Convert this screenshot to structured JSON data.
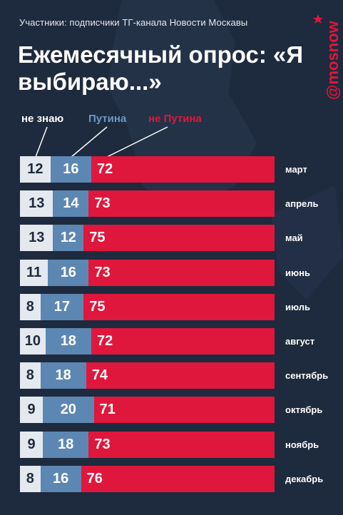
{
  "header": {
    "subtitle": "Участники: подписчики ТГ-канала Новости Москавы",
    "title": "Ежемесячный опрос: «Я выбираю...»",
    "brand": "@mosnow"
  },
  "colors": {
    "background": "#1e2a3d",
    "dont_know": "#e4e9ef",
    "putin": "#5d87b3",
    "not_putin": "#e0173c"
  },
  "chart_data": {
    "type": "bar",
    "orientation": "horizontal",
    "stacked": true,
    "categories": [
      "март",
      "апрель",
      "май",
      "июнь",
      "июль",
      "август",
      "сентябрь",
      "октябрь",
      "ноябрь",
      "декабрь"
    ],
    "series": [
      {
        "name": "не знаю",
        "values": [
          12,
          13,
          13,
          11,
          8,
          10,
          8,
          9,
          9,
          8
        ]
      },
      {
        "name": "Путина",
        "values": [
          16,
          14,
          12,
          16,
          17,
          18,
          18,
          20,
          18,
          16
        ]
      },
      {
        "name": "не Путина",
        "values": [
          72,
          73,
          75,
          73,
          75,
          72,
          74,
          71,
          73,
          76
        ]
      }
    ],
    "legend": "top"
  }
}
